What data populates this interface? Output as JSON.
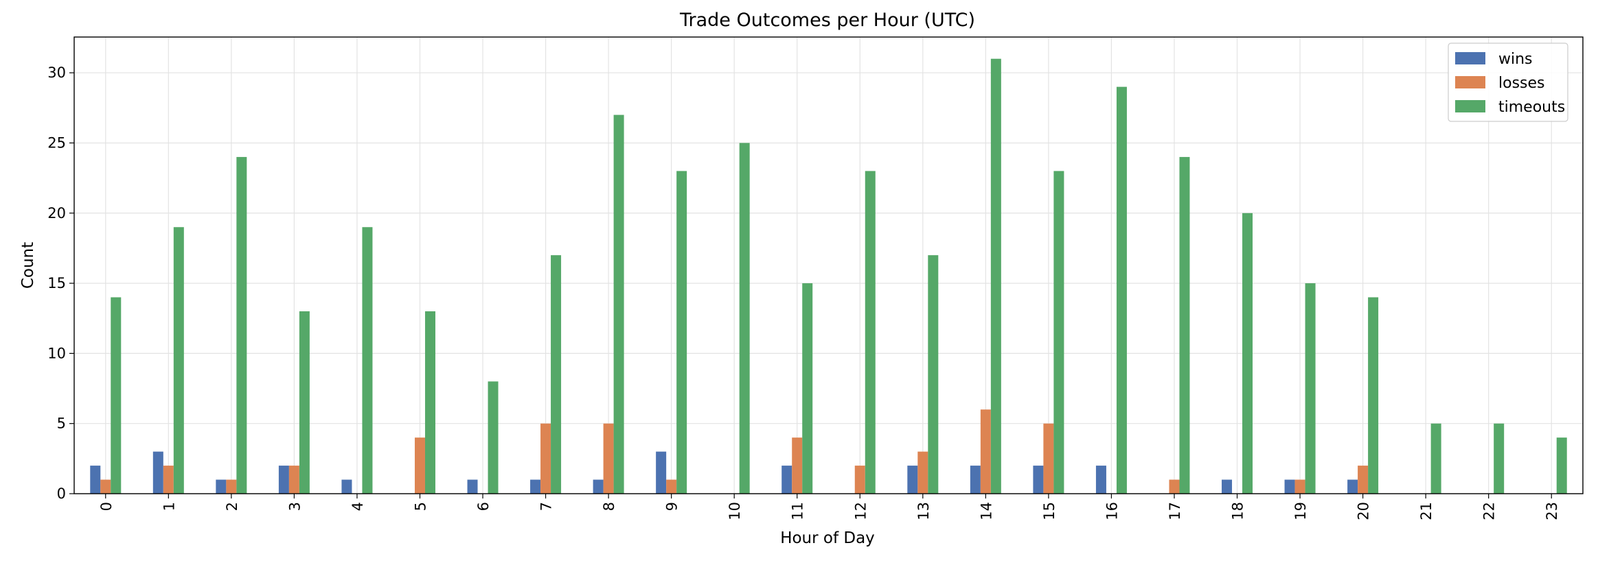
{
  "chart_data": {
    "type": "bar",
    "title": "Trade Outcomes per Hour (UTC)",
    "xlabel": "Hour of Day",
    "ylabel": "Count",
    "categories": [
      "0",
      "1",
      "2",
      "3",
      "4",
      "5",
      "6",
      "7",
      "8",
      "9",
      "10",
      "11",
      "12",
      "13",
      "14",
      "15",
      "16",
      "17",
      "18",
      "19",
      "20",
      "21",
      "22",
      "23"
    ],
    "series": [
      {
        "name": "wins",
        "color": "#4c72b0",
        "values": [
          2,
          3,
          1,
          2,
          1,
          0,
          1,
          1,
          1,
          3,
          0,
          2,
          0,
          2,
          2,
          2,
          2,
          0,
          1,
          1,
          1,
          0,
          0,
          0
        ]
      },
      {
        "name": "losses",
        "color": "#dd8452",
        "values": [
          1,
          2,
          1,
          2,
          0,
          4,
          0,
          5,
          5,
          1,
          0,
          4,
          2,
          3,
          6,
          5,
          0,
          1,
          0,
          1,
          2,
          0,
          0,
          0
        ]
      },
      {
        "name": "timeouts",
        "color": "#55a868",
        "values": [
          14,
          19,
          24,
          13,
          19,
          13,
          8,
          17,
          27,
          23,
          25,
          15,
          23,
          17,
          31,
          23,
          29,
          24,
          20,
          15,
          14,
          5,
          5,
          4
        ]
      }
    ],
    "ylim": [
      0,
      32.55
    ],
    "yticks": [
      "0",
      "5",
      "10",
      "15",
      "20",
      "25",
      "30"
    ],
    "grid": true,
    "legend_position": "top-right"
  }
}
